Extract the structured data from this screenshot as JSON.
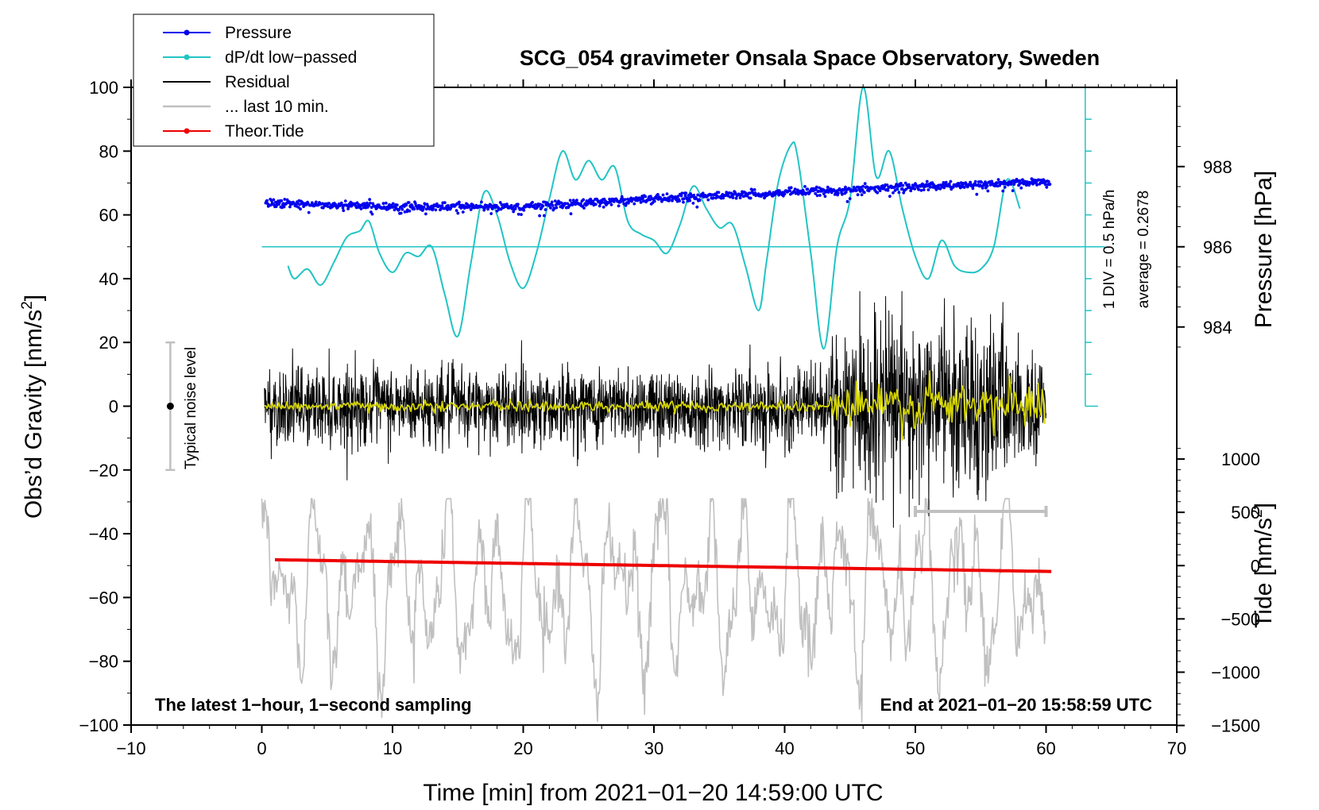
{
  "chart_data": {
    "type": "line",
    "title": "SCG_054 gravimeter Onsala Space Observatory, Sweden",
    "xlabel": "Time [min] from 2021−01−20 14:59:00 UTC",
    "ylabel_left": "Obs’d Gravity [nm/s",
    "ylabel_left_sup": "2",
    "ylabel_left_close": "]",
    "ylabel_right_top": "Pressure [hPa]",
    "ylabel_right_bottom": "Tide [nm/s",
    "ylabel_right_bottom_sup": "2",
    "ylabel_right_bottom_close": "]",
    "xlim": [
      -10,
      70
    ],
    "ylim": [
      -100,
      100
    ],
    "x_ticks": [
      "−10",
      "0",
      "10",
      "20",
      "30",
      "40",
      "50",
      "60",
      "70"
    ],
    "y_ticks": [
      "100",
      "80",
      "60",
      "40",
      "20",
      "0",
      "−20",
      "−40",
      "−60",
      "−80",
      "−100"
    ],
    "pressure_ticks": [
      "988",
      "986",
      "984"
    ],
    "tide_ticks": [
      "1000",
      "500",
      "0",
      "−500",
      "−1000",
      "−1500"
    ],
    "legend": [
      {
        "label": "Pressure",
        "color": "#0000ee",
        "marker": true
      },
      {
        "label": "dP/dt low−passed",
        "color": "#22c4c4",
        "marker": true
      },
      {
        "label": "Residual",
        "color": "#000000",
        "marker": false
      },
      {
        "label": "... last 10 min.",
        "color": "#c0c0c0",
        "marker": false
      },
      {
        "label": "Theor.Tide",
        "color": "#ee0000",
        "marker": true
      }
    ],
    "annotations": {
      "bottom_left": "The latest 1−hour, 1−second sampling",
      "bottom_right": "End at 2021−01−20 15:58:59 UTC",
      "noise_label": "Typical noise level",
      "div_label": "1 DIV = 0.5 hPa/h",
      "average_label": "average = 0.2678"
    },
    "noise_bar": {
      "x": -7,
      "y": 0,
      "low": -20,
      "high": 20
    },
    "last10_range": [
      50,
      60
    ],
    "series": [
      {
        "name": "Pressure",
        "color": "#0000ee",
        "unit": "hPa",
        "x": [
          0,
          10,
          20,
          30,
          40,
          50,
          60
        ],
        "values": [
          987.1,
          987.0,
          987.0,
          987.2,
          987.35,
          987.5,
          987.6
        ]
      },
      {
        "name": "dP/dt low-passed",
        "color": "#22c4c4",
        "unit": "nm/s2-equiv",
        "x": [
          2,
          2.5,
          3.5,
          4.5,
          5.5,
          6.5,
          7.5,
          8.2,
          9,
          10,
          11,
          12,
          13,
          14,
          15,
          16,
          17,
          18,
          19,
          20,
          21,
          22,
          23,
          24,
          25,
          26,
          27,
          28,
          29,
          30,
          31,
          32,
          33,
          34,
          35,
          36,
          37,
          38,
          38.6,
          39.5,
          40.5,
          41,
          42,
          43,
          44,
          45,
          46,
          47,
          48,
          49,
          50,
          51,
          52,
          53,
          54,
          55,
          56,
          57,
          58
        ],
        "values": [
          44,
          40,
          43,
          38,
          45,
          53,
          55,
          58,
          48,
          42,
          48,
          47,
          50,
          35,
          22,
          45,
          67,
          60,
          45,
          37,
          48,
          65,
          80,
          71,
          77,
          71,
          75,
          58,
          54,
          52,
          48,
          57,
          69,
          62,
          56,
          57,
          44,
          30,
          45,
          70,
          82,
          78,
          48,
          18,
          50,
          65,
          100,
          72,
          80,
          62,
          47,
          40,
          52,
          44,
          42,
          43,
          50,
          71,
          62
        ]
      },
      {
        "name": "Theor.Tide",
        "color": "#ee0000",
        "unit": "nm/s2",
        "x": [
          1,
          60.5
        ],
        "values": [
          55,
          -55
        ]
      }
    ]
  }
}
